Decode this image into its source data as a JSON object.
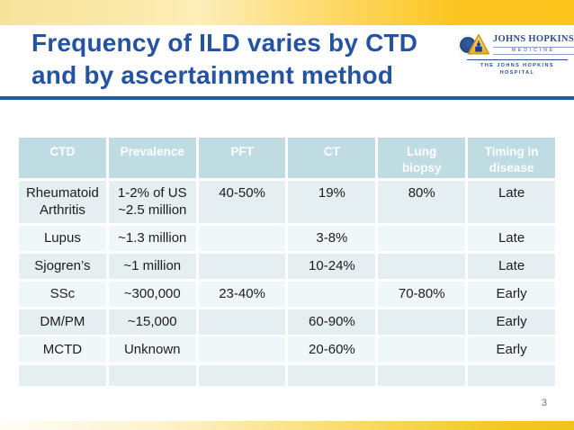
{
  "slide": {
    "title_line1": "Frequency of ILD varies by CTD",
    "title_line2": "and by ascertainment method",
    "page_number": "3"
  },
  "logo": {
    "brand": "JOHNS HOPKINS",
    "division": "MEDICINE",
    "hospital": "THE JOHNS HOPKINS\nHOSPITAL",
    "shield_icon": "johns-hopkins-gold-shield",
    "seal_icon": "johns-hopkins-blue-seal"
  },
  "colors": {
    "title_blue": "#2553a0",
    "rule_blue": "#1e5ca6",
    "header_teal": "#bedce2",
    "row_odd": "#e5eff2",
    "row_even": "#f0f7f9",
    "logo_blue": "#2b4d8e",
    "gold": "#fcc41f"
  },
  "table": {
    "headers": [
      "CTD",
      "Prevalence",
      "PFT",
      "CT",
      "Lung\nbiopsy",
      "Timing in\ndisease"
    ],
    "rows": [
      [
        "Rheumatoid\nArthritis",
        "1-2% of US\n~2.5 million",
        "40-50%",
        "19%",
        "80%",
        "Late"
      ],
      [
        "Lupus",
        "~1.3 million",
        "",
        "3-8%",
        "",
        "Late"
      ],
      [
        "Sjogren’s",
        "~1 million",
        "",
        "10-24%",
        "",
        "Late"
      ],
      [
        "SSc",
        "~300,000",
        "23-40%",
        "",
        "70-80%",
        "Early"
      ],
      [
        "DM/PM",
        "~15,000",
        "",
        "60-90%",
        "",
        "Early"
      ],
      [
        "MCTD",
        "Unknown",
        "",
        "20-60%",
        "",
        "Early"
      ],
      [
        "",
        "",
        "",
        "",
        "",
        ""
      ]
    ]
  }
}
